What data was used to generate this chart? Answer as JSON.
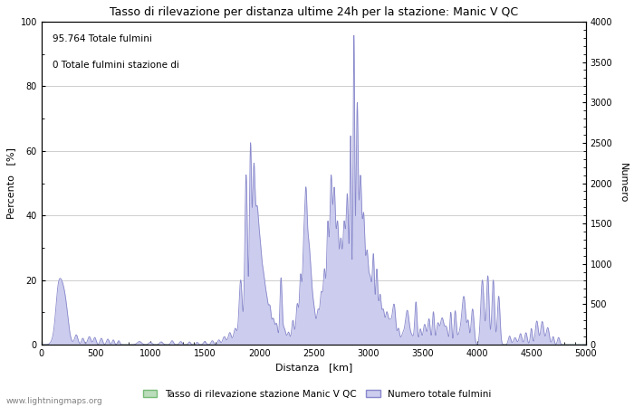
{
  "title": "Tasso di rilevazione per distanza ultime 24h per la stazione: Manic V QC",
  "xlabel": "Distanza   [km]",
  "ylabel_left": "Percento   [%]",
  "ylabel_right": "Numero",
  "annotation_line1": "95.764 Totale fulmini",
  "annotation_line2": "0 Totale fulmini stazione di",
  "xlim": [
    0,
    5000
  ],
  "ylim_left": [
    0,
    100
  ],
  "ylim_right": [
    0,
    4000
  ],
  "legend_green_label": "Tasso di rilevazione stazione Manic V QC",
  "legend_blue_label": "Numero totale fulmini",
  "watermark": "www.lightningmaps.org",
  "line_color": "#8888cc",
  "fill_color": "#ccccee",
  "green_fill_color": "#bbddbb",
  "background_color": "#ffffff",
  "grid_color": "#bbbbbb"
}
